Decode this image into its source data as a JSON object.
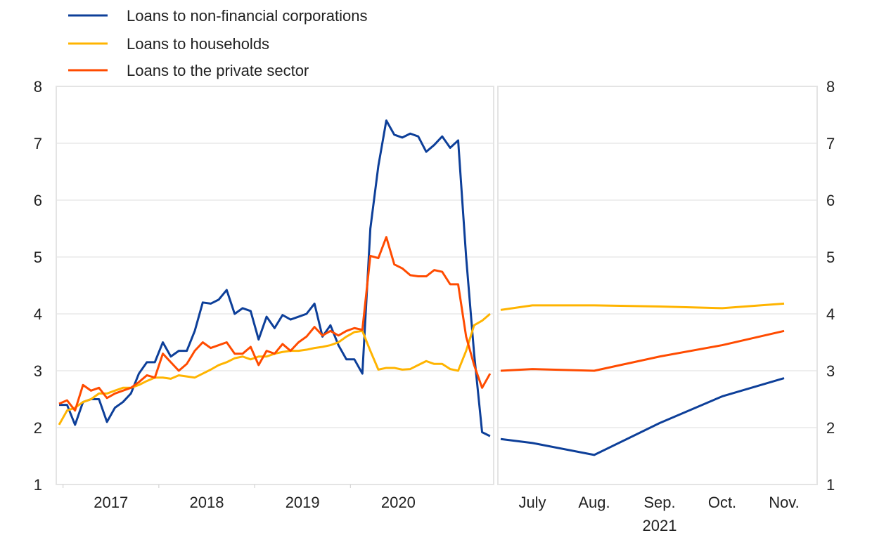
{
  "chart_data": [
    {
      "type": "line",
      "panel": "left",
      "frequency": "monthly",
      "x_start": "2016-12",
      "x_tick_labels": [
        "2017",
        "2018",
        "2019",
        "2020"
      ],
      "ylim": [
        1,
        8
      ],
      "y_ticks": [
        "1",
        "2",
        "3",
        "4",
        "5",
        "6",
        "7",
        "8"
      ],
      "grid": true,
      "series": [
        {
          "name": "Loans to non-financial corporations",
          "color": "#0d3f99",
          "values": [
            2.4,
            2.4,
            2.05,
            2.45,
            2.5,
            2.5,
            2.1,
            2.35,
            2.45,
            2.6,
            2.95,
            3.15,
            3.15,
            3.5,
            3.25,
            3.35,
            3.35,
            3.7,
            4.2,
            4.18,
            4.25,
            4.42,
            4.0,
            4.1,
            4.05,
            3.55,
            3.95,
            3.75,
            3.98,
            3.9,
            3.95,
            4.0,
            4.18,
            3.6,
            3.8,
            3.45,
            3.2,
            3.2,
            2.95,
            5.5,
            6.6,
            7.4,
            7.15,
            7.1,
            7.17,
            7.12,
            6.85,
            6.97,
            7.12,
            6.92,
            7.05,
            5.0,
            3.3,
            1.92,
            1.85
          ]
        },
        {
          "name": "Loans to households",
          "color": "#ffb400",
          "values": [
            2.05,
            2.3,
            2.35,
            2.45,
            2.5,
            2.6,
            2.6,
            2.65,
            2.7,
            2.7,
            2.75,
            2.82,
            2.88,
            2.88,
            2.86,
            2.92,
            2.9,
            2.88,
            2.95,
            3.02,
            3.1,
            3.15,
            3.22,
            3.25,
            3.2,
            3.25,
            3.25,
            3.3,
            3.33,
            3.35,
            3.35,
            3.37,
            3.4,
            3.42,
            3.45,
            3.5,
            3.6,
            3.68,
            3.7,
            3.35,
            3.02,
            3.05,
            3.05,
            3.02,
            3.03,
            3.1,
            3.17,
            3.12,
            3.12,
            3.03,
            3.0,
            3.35,
            3.8,
            3.88,
            4.0
          ]
        },
        {
          "name": "Loans to the private sector",
          "color": "#ff4b00",
          "values": [
            2.42,
            2.48,
            2.3,
            2.75,
            2.65,
            2.7,
            2.52,
            2.6,
            2.65,
            2.7,
            2.8,
            2.92,
            2.88,
            3.3,
            3.15,
            3.0,
            3.12,
            3.35,
            3.5,
            3.4,
            3.45,
            3.5,
            3.3,
            3.3,
            3.42,
            3.1,
            3.35,
            3.3,
            3.47,
            3.35,
            3.5,
            3.6,
            3.77,
            3.62,
            3.7,
            3.62,
            3.7,
            3.75,
            3.72,
            5.02,
            4.98,
            5.35,
            4.87,
            4.8,
            4.68,
            4.66,
            4.66,
            4.77,
            4.74,
            4.52,
            4.52,
            3.6,
            3.1,
            2.7,
            2.95
          ]
        }
      ]
    },
    {
      "type": "line",
      "panel": "right",
      "categories": [
        "",
        "July",
        "Aug.",
        "Sep.",
        "Oct.",
        "Nov."
      ],
      "x_year_label": "2021",
      "ylim": [
        1,
        8
      ],
      "y_ticks": [
        "1",
        "2",
        "3",
        "4",
        "5",
        "6",
        "7",
        "8"
      ],
      "grid": true,
      "series": [
        {
          "name": "Loans to non-financial corporations",
          "color": "#0d3f99",
          "values": [
            1.8,
            1.73,
            1.52,
            2.08,
            2.55,
            2.87
          ]
        },
        {
          "name": "Loans to households",
          "color": "#ffb400",
          "values": [
            4.07,
            4.15,
            4.15,
            4.13,
            4.1,
            4.18
          ]
        },
        {
          "name": "Loans to the private sector",
          "color": "#ff4b00",
          "values": [
            3.0,
            3.03,
            3.0,
            3.25,
            3.45,
            3.7
          ]
        }
      ]
    }
  ],
  "legend": {
    "placement": "top-left",
    "items": [
      "Loans to non-financial corporations",
      "Loans to households",
      "Loans to the private sector"
    ]
  }
}
